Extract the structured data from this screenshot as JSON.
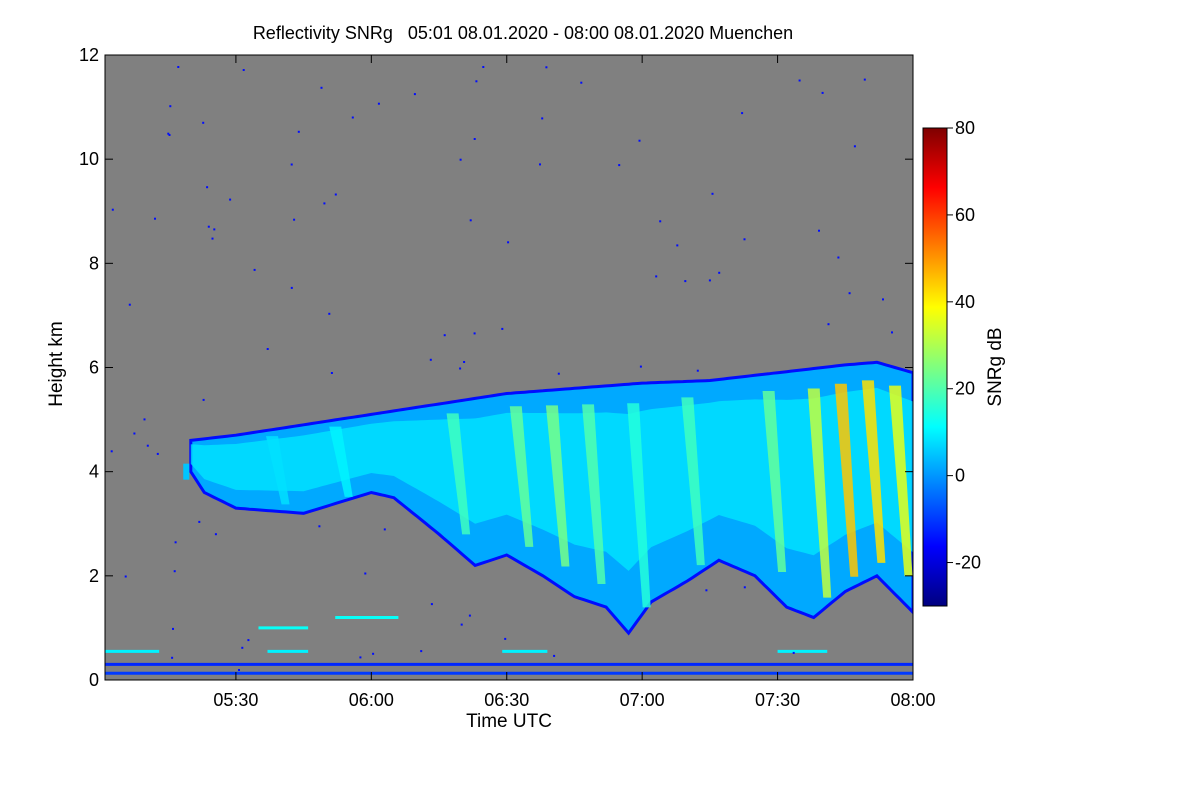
{
  "chart_data": {
    "type": "heatmap",
    "title": "Reflectivity SNRg   05:01 08.01.2020 - 08:00 08.01.2020 Muenchen",
    "xlabel": "Time UTC",
    "ylabel": "Height km",
    "x_range_minutes_utc": [
      301,
      480
    ],
    "ylim": [
      0,
      12
    ],
    "x_ticks": [
      {
        "minute": 330,
        "label": "05:30"
      },
      {
        "minute": 360,
        "label": "06:00"
      },
      {
        "minute": 390,
        "label": "06:30"
      },
      {
        "minute": 420,
        "label": "07:00"
      },
      {
        "minute": 450,
        "label": "07:30"
      },
      {
        "minute": 480,
        "label": "08:00"
      }
    ],
    "y_ticks": [
      {
        "value": 0,
        "label": "0"
      },
      {
        "value": 2,
        "label": "2"
      },
      {
        "value": 4,
        "label": "4"
      },
      {
        "value": 6,
        "label": "6"
      },
      {
        "value": 8,
        "label": "8"
      },
      {
        "value": 10,
        "label": "10"
      },
      {
        "value": 12,
        "label": "12"
      }
    ],
    "background_color": "#808080",
    "colorbar": {
      "label": "SNRg dB",
      "range": [
        -30,
        80
      ],
      "ticks": [
        {
          "value": -20,
          "label": "-20"
        },
        {
          "value": 0,
          "label": "0"
        },
        {
          "value": 20,
          "label": "20"
        },
        {
          "value": 40,
          "label": "40"
        },
        {
          "value": 60,
          "label": "60"
        },
        {
          "value": 80,
          "label": "80"
        }
      ],
      "colormap": [
        "#00007f",
        "#0000ff",
        "#007fff",
        "#00ffff",
        "#7fff7f",
        "#ffff00",
        "#ff7f00",
        "#ff0000",
        "#7f0000"
      ]
    },
    "cloud_layer": {
      "description_minutes_km": true,
      "top_km": [
        {
          "minute": 320,
          "value": 4.6
        },
        {
          "minute": 330,
          "value": 4.7
        },
        {
          "minute": 345,
          "value": 4.9
        },
        {
          "minute": 360,
          "value": 5.1
        },
        {
          "minute": 375,
          "value": 5.3
        },
        {
          "minute": 390,
          "value": 5.5
        },
        {
          "minute": 405,
          "value": 5.6
        },
        {
          "minute": 420,
          "value": 5.7
        },
        {
          "minute": 435,
          "value": 5.75
        },
        {
          "minute": 450,
          "value": 5.9
        },
        {
          "minute": 465,
          "value": 6.05
        },
        {
          "minute": 472,
          "value": 6.1
        },
        {
          "minute": 480,
          "value": 5.9
        }
      ],
      "base_km": [
        {
          "minute": 320,
          "value": 4.0
        },
        {
          "minute": 323,
          "value": 3.6
        },
        {
          "minute": 330,
          "value": 3.3
        },
        {
          "minute": 345,
          "value": 3.2
        },
        {
          "minute": 360,
          "value": 3.6
        },
        {
          "minute": 365,
          "value": 3.5
        },
        {
          "minute": 375,
          "value": 2.8
        },
        {
          "minute": 383,
          "value": 2.2
        },
        {
          "minute": 390,
          "value": 2.4
        },
        {
          "minute": 398,
          "value": 2.0
        },
        {
          "minute": 405,
          "value": 1.6
        },
        {
          "minute": 412,
          "value": 1.4
        },
        {
          "minute": 417,
          "value": 0.9
        },
        {
          "minute": 422,
          "value": 1.5
        },
        {
          "minute": 430,
          "value": 1.9
        },
        {
          "minute": 437,
          "value": 2.3
        },
        {
          "minute": 445,
          "value": 2.0
        },
        {
          "minute": 452,
          "value": 1.4
        },
        {
          "minute": 458,
          "value": 1.2
        },
        {
          "minute": 465,
          "value": 1.7
        },
        {
          "minute": 472,
          "value": 2.0
        },
        {
          "minute": 480,
          "value": 1.3
        }
      ],
      "streaks": [
        {
          "minute": 338,
          "snr_db": 8
        },
        {
          "minute": 352,
          "snr_db": 10
        },
        {
          "minute": 378,
          "snr_db": 18
        },
        {
          "minute": 392,
          "snr_db": 22
        },
        {
          "minute": 400,
          "snr_db": 24
        },
        {
          "minute": 408,
          "snr_db": 20
        },
        {
          "minute": 418,
          "snr_db": 15
        },
        {
          "minute": 430,
          "snr_db": 18
        },
        {
          "minute": 448,
          "snr_db": 22
        },
        {
          "minute": 458,
          "snr_db": 32
        },
        {
          "minute": 464,
          "snr_db": 45
        },
        {
          "minute": 470,
          "snr_db": 42
        },
        {
          "minute": 476,
          "snr_db": 36
        }
      ]
    },
    "isolated_patch": {
      "minute": 319,
      "height_km": 4.0,
      "snr_db": 5
    },
    "low_level_lines": [
      {
        "height_km": 0.3,
        "start_minute": 301,
        "end_minute": 480,
        "snr_db": -12
      },
      {
        "height_km": 0.13,
        "start_minute": 301,
        "end_minute": 480,
        "snr_db": -10
      },
      {
        "height_km": 0.55,
        "start_minute": 301,
        "end_minute": 313,
        "snr_db": 10
      },
      {
        "height_km": 0.55,
        "start_minute": 337,
        "end_minute": 346,
        "snr_db": 10
      },
      {
        "height_km": 0.55,
        "start_minute": 389,
        "end_minute": 399,
        "snr_db": 10
      },
      {
        "height_km": 0.55,
        "start_minute": 450,
        "end_minute": 461,
        "snr_db": 10
      },
      {
        "height_km": 1.0,
        "start_minute": 335,
        "end_minute": 346,
        "snr_db": 12
      },
      {
        "height_km": 1.2,
        "start_minute": 352,
        "end_minute": 366,
        "snr_db": 12
      }
    ]
  }
}
